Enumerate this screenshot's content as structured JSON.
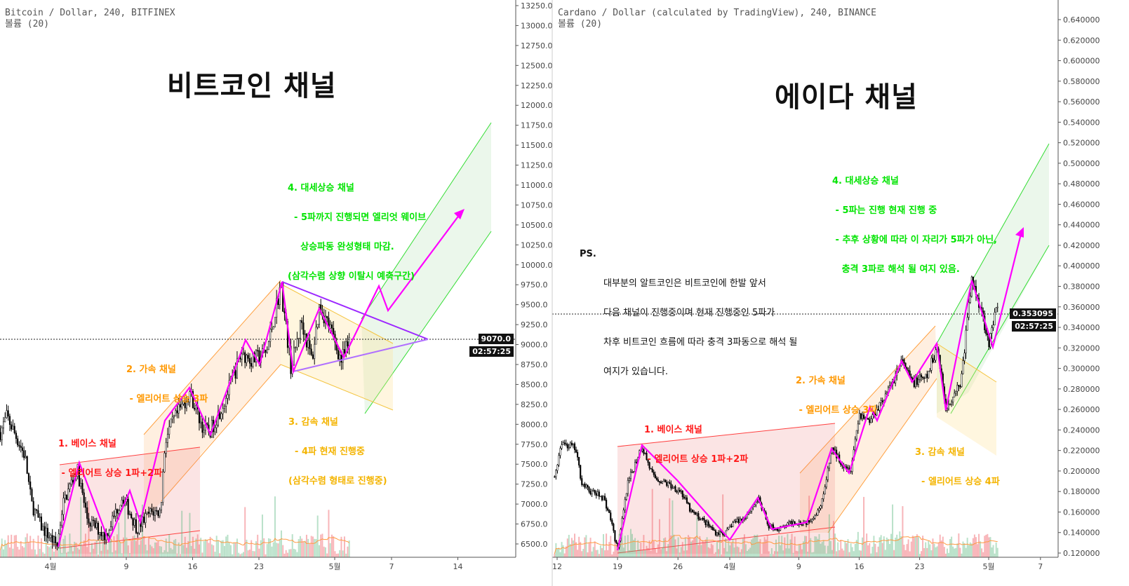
{
  "left": {
    "header": "Bitcoin / Dollar, 240, BITFINEX",
    "volume_label": "볼륨 (20)",
    "title": "비트코인 채널",
    "price_tag": "9070.0",
    "countdown": "02:57:25",
    "notes": {
      "base": [
        "1. 베이스 채널",
        " - 엘리어트 상승 1파+2파"
      ],
      "accel": [
        "2. 가속 채널",
        " - 엘리어트 상승 3파"
      ],
      "decel": [
        "3. 감속 채널",
        "  - 4파 현재 진행중",
        "(삼각수렴 형태로 진행중)"
      ],
      "major": [
        "4. 대세상승 채널",
        "  - 5파까지 진행되면 엘리엇 웨이브",
        "    상승파동 완성형태 마감.",
        "(삼각수렴 상향 이탈시 예측구간)"
      ]
    },
    "colors": {
      "base": "#ff1a1a",
      "accel": "#ff9800",
      "decel": "#f4b400",
      "major": "#00e400",
      "wave": "#ff00ff",
      "triangle": "#9c27ff"
    }
  },
  "right": {
    "header": "Cardano / Dollar (calculated by TradingView), 240, BINANCE",
    "volume_label": "볼륨 (20)",
    "title": "에이다 채널",
    "price_tag": "0.353095",
    "countdown": "02:57:25",
    "notes": {
      "base": [
        "1. 베이스 채널",
        " - 엘리어트 상승 1파+2파"
      ],
      "accel": [
        "2. 가속 채널",
        " - 엘리어트 상승 3파"
      ],
      "decel": [
        "3. 감속 채널",
        "  - 엘리어트 상승 4파"
      ],
      "major": [
        "4. 대세상승 채널",
        " - 5파는 진행 현재 진행 중",
        " - 추후 상황에 따라 이 자리가 5파가 아닌,",
        "   충격 3파로 해석 될 여지 있음."
      ]
    },
    "ps_label": "PS.",
    "ps_lines": [
      "대부분의 알트코인은 비트코인에 한발 앞서",
      "다음 채널이 진행중이며 현재 진행중인 5파가",
      "차후 비트코인 흐름에 따라 충격 3파동으로 해석 될",
      "여지가 있습니다."
    ]
  },
  "chart_data": [
    {
      "type": "candlestick",
      "title": "Bitcoin / Dollar, 240, BITFINEX",
      "ylim": [
        6500,
        13250
      ],
      "yticks": [
        "6500.0",
        "6750.0",
        "7000.0",
        "7250.0",
        "7500.0",
        "7750.0",
        "8000.0",
        "8250.0",
        "8500.0",
        "8750.0",
        "9000.0",
        "9250.0",
        "9500.0",
        "9750.0",
        "10000.0",
        "10250.0",
        "10500.0",
        "10750.0",
        "11000.0",
        "11250.0",
        "11500.0",
        "11750.0",
        "12000.0",
        "12250.0",
        "12500.0",
        "12750.0",
        "13000.0",
        "13250.0"
      ],
      "xticks": [
        {
          "day": 0,
          "label": "4월"
        },
        {
          "day": 8,
          "label": "9"
        },
        {
          "day": 15,
          "label": "16"
        },
        {
          "day": 22,
          "label": "23"
        },
        {
          "day": 30,
          "label": "5월"
        },
        {
          "day": 36,
          "label": "7"
        },
        {
          "day": 43,
          "label": "14"
        }
      ],
      "last_price": 9070.0,
      "price_path_days_from_apr1": [
        [
          -5.3,
          7900
        ],
        [
          -4.6,
          8100
        ],
        [
          -2.7,
          7600
        ],
        [
          -2,
          7000
        ],
        [
          -0.9,
          6700
        ],
        [
          0.7,
          6480
        ],
        [
          1.3,
          7000
        ],
        [
          2.8,
          7450
        ],
        [
          3.9,
          6800
        ],
        [
          5.8,
          6600
        ],
        [
          7.6,
          7100
        ],
        [
          9.1,
          6700
        ],
        [
          10.6,
          6900
        ],
        [
          11.6,
          6900
        ],
        [
          12.1,
          7800
        ],
        [
          12.8,
          8000
        ],
        [
          14.7,
          8400
        ],
        [
          16.1,
          7950
        ],
        [
          16.8,
          7900
        ],
        [
          18.4,
          8300
        ],
        [
          20.2,
          8900
        ],
        [
          21.3,
          8800
        ],
        [
          22.8,
          8900
        ],
        [
          24.3,
          9750
        ],
        [
          25.4,
          8700
        ],
        [
          26.5,
          9300
        ],
        [
          27.6,
          8800
        ],
        [
          28.4,
          9500
        ],
        [
          29.5,
          9200
        ],
        [
          30.7,
          8800
        ],
        [
          31.7,
          9070
        ]
      ]
    },
    {
      "type": "candlestick",
      "title": "Cardano / Dollar (calculated by TradingView), 240, BINANCE",
      "ylim": [
        0.12,
        0.64
      ],
      "yticks": [
        "0.120000",
        "0.140000",
        "0.160000",
        "0.180000",
        "0.200000",
        "0.220000",
        "0.240000",
        "0.260000",
        "0.280000",
        "0.300000",
        "0.320000",
        "0.340000",
        "0.360000",
        "0.380000",
        "0.400000",
        "0.420000",
        "0.440000",
        "0.460000",
        "0.480000",
        "0.500000",
        "0.520000",
        "0.540000",
        "0.560000",
        "0.580000",
        "0.600000",
        "0.620000",
        "0.640000"
      ],
      "xticks": [
        {
          "day": -20,
          "label": "12"
        },
        {
          "day": -13,
          "label": "19"
        },
        {
          "day": -6,
          "label": "26"
        },
        {
          "day": 0,
          "label": "4월"
        },
        {
          "day": 8,
          "label": "9"
        },
        {
          "day": 15,
          "label": "16"
        },
        {
          "day": 22,
          "label": "23"
        },
        {
          "day": 30,
          "label": "5월"
        },
        {
          "day": 36,
          "label": "7"
        }
      ],
      "last_price": 0.353095,
      "price_path_days_from_apr1": [
        [
          -20.3,
          0.1945
        ],
        [
          -19.5,
          0.2286
        ],
        [
          -17.9,
          0.2218
        ],
        [
          -17.1,
          0.1876
        ],
        [
          -16.3,
          0.1808
        ],
        [
          -14.6,
          0.174
        ],
        [
          -13.8,
          0.1535
        ],
        [
          -13,
          0.1227
        ],
        [
          -11.8,
          0.1876
        ],
        [
          -10.2,
          0.2252
        ],
        [
          -8.9,
          0.1945
        ],
        [
          -7.3,
          0.1876
        ],
        [
          -5.7,
          0.1808
        ],
        [
          -4.5,
          0.1603
        ],
        [
          -3.3,
          0.1535
        ],
        [
          -1.6,
          0.1398
        ],
        [
          -0.4,
          0.1398
        ],
        [
          0.4,
          0.15
        ],
        [
          1.6,
          0.1535
        ],
        [
          3.3,
          0.1726
        ],
        [
          4.5,
          0.1466
        ],
        [
          5.7,
          0.1432
        ],
        [
          7.3,
          0.15
        ],
        [
          8.9,
          0.15
        ],
        [
          10.2,
          0.1603
        ],
        [
          11,
          0.1808
        ],
        [
          11.8,
          0.2218
        ],
        [
          13,
          0.2081
        ],
        [
          14,
          0.2013
        ],
        [
          15,
          0.2559
        ],
        [
          16.3,
          0.2491
        ],
        [
          17.1,
          0.2627
        ],
        [
          18.3,
          0.2764
        ],
        [
          19.9,
          0.3071
        ],
        [
          21.1,
          0.2867
        ],
        [
          22.8,
          0.2901
        ],
        [
          24,
          0.3208
        ],
        [
          24.4,
          0.3037
        ],
        [
          25,
          0.2593
        ],
        [
          26,
          0.2764
        ],
        [
          26.8,
          0.2867
        ],
        [
          28,
          0.3857
        ],
        [
          28.9,
          0.3652
        ],
        [
          30.1,
          0.3242
        ],
        [
          30.9,
          0.3584
        ],
        [
          31.2,
          0.353095
        ]
      ]
    }
  ]
}
